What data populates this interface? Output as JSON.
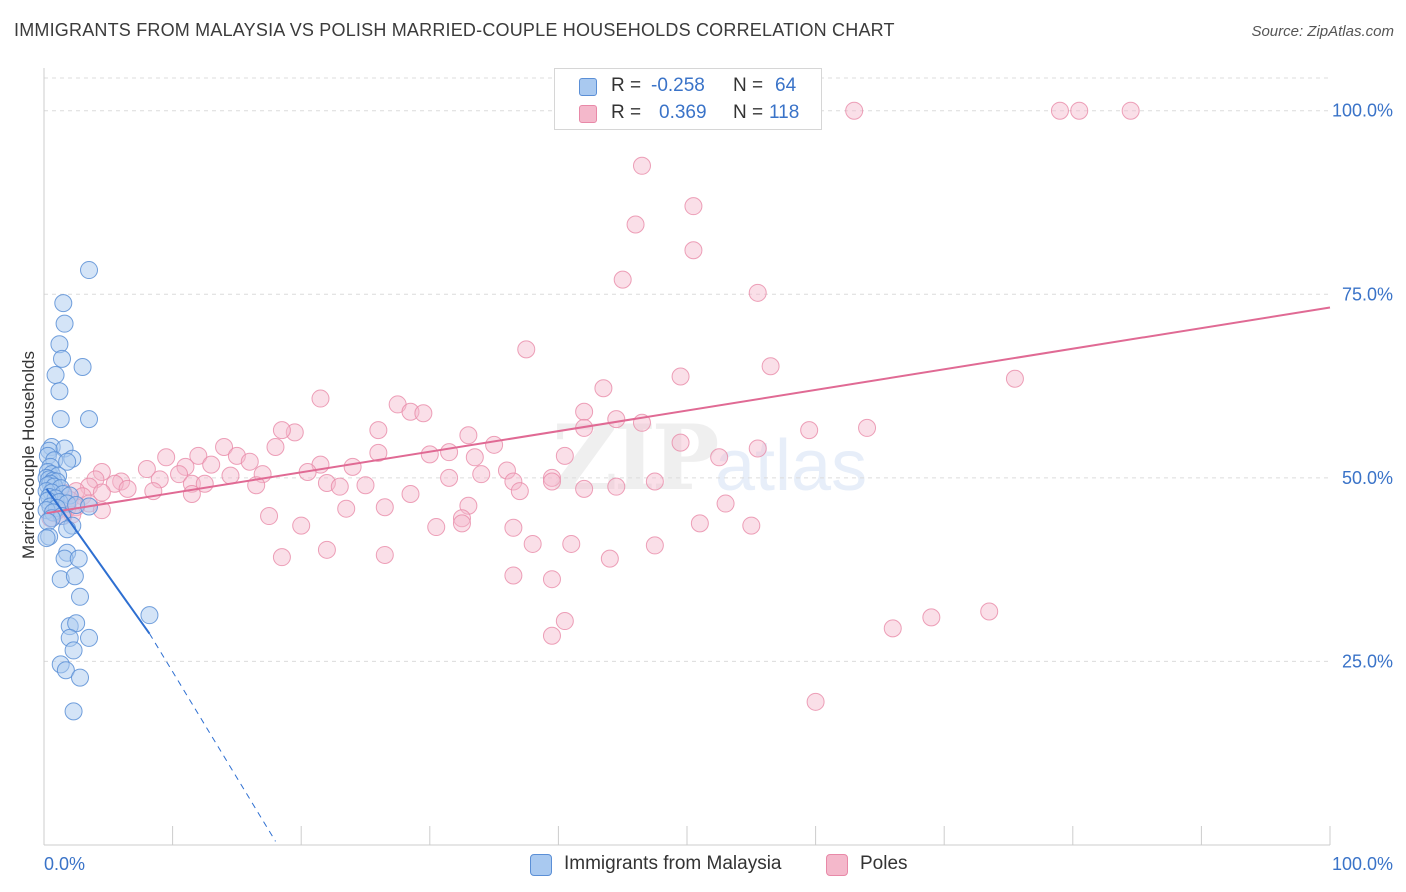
{
  "title": "IMMIGRANTS FROM MALAYSIA VS POLISH MARRIED-COUPLE HOUSEHOLDS CORRELATION CHART",
  "source": "Source: ZipAtlas.com",
  "watermark": {
    "zip": "ZIP",
    "atlas": "atlas"
  },
  "legend": {
    "rows": [
      {
        "r_label": "R =",
        "r_value": "-0.258",
        "n_label": "N =",
        "n_value": "64"
      },
      {
        "r_label": "R =",
        "r_value": "0.369",
        "n_label": "N =",
        "n_value": "118"
      }
    ]
  },
  "bottom_legend": {
    "series_1": "Immigrants from Malaysia",
    "series_2": "Poles"
  },
  "colors": {
    "blue_fill": "#a9c9f0",
    "blue_stroke": "#5b8fd6",
    "blue_line": "#2e6fd1",
    "pink_fill": "#f4b8cb",
    "pink_stroke": "#e889a8",
    "pink_line": "#e06a94",
    "tick_label": "#3a73c8",
    "grid": "#dcdcdc"
  },
  "chart_data": {
    "type": "scatter",
    "title": "IMMIGRANTS FROM MALAYSIA VS POLISH MARRIED-COUPLE HOUSEHOLDS CORRELATION CHART",
    "xlabel": "",
    "ylabel": "Married-couple Households",
    "xlim": [
      0,
      100
    ],
    "ylim": [
      0,
      105
    ],
    "x_tick_labels": [
      "0.0%",
      "100.0%"
    ],
    "y_ticks": [
      25,
      50,
      75,
      100
    ],
    "y_tick_labels": [
      "25.0%",
      "50.0%",
      "75.0%",
      "100.0%"
    ],
    "grid": "horizontal dashed",
    "legend_position": "top-center",
    "series": [
      {
        "name": "Immigrants from Malaysia",
        "color": "#a9c9f0",
        "regression": {
          "x": [
            0.2,
            8.2
          ],
          "y": [
            48.5,
            28.8
          ],
          "dashed_extension_to": [
            18,
            0.5
          ]
        },
        "points": [
          [
            3.5,
            78.3
          ],
          [
            1.5,
            73.8
          ],
          [
            1.6,
            71
          ],
          [
            1.2,
            68.2
          ],
          [
            1.4,
            66.2
          ],
          [
            3,
            65.1
          ],
          [
            0.9,
            64
          ],
          [
            1.2,
            61.8
          ],
          [
            1.3,
            58
          ],
          [
            3.5,
            58
          ],
          [
            0.6,
            54.2
          ],
          [
            0.4,
            53.7
          ],
          [
            1.6,
            54
          ],
          [
            0.3,
            53
          ],
          [
            0.8,
            52.4
          ],
          [
            2.2,
            52.6
          ],
          [
            1.8,
            52.2
          ],
          [
            0.5,
            51.5
          ],
          [
            0.3,
            50.8
          ],
          [
            0.6,
            50.5
          ],
          [
            1.1,
            50.3
          ],
          [
            0.2,
            50
          ],
          [
            0.4,
            49.8
          ],
          [
            0.7,
            49.6
          ],
          [
            1.0,
            49.5
          ],
          [
            0.5,
            49.2
          ],
          [
            0.3,
            49
          ],
          [
            0.8,
            48.8
          ],
          [
            1.3,
            48.6
          ],
          [
            0.2,
            48.2
          ],
          [
            0.6,
            48
          ],
          [
            1.5,
            47.8
          ],
          [
            2.0,
            47.6
          ],
          [
            0.4,
            47.4
          ],
          [
            0.9,
            47.2
          ],
          [
            0.3,
            46.9
          ],
          [
            1.2,
            46.7
          ],
          [
            1.8,
            46.5
          ],
          [
            2.5,
            46.3
          ],
          [
            0.5,
            46.1
          ],
          [
            1.0,
            45.9
          ],
          [
            0.2,
            45.6
          ],
          [
            0.7,
            45.3
          ],
          [
            3.5,
            46.1
          ],
          [
            1.4,
            44.8
          ],
          [
            0.6,
            44.5
          ],
          [
            0.3,
            44
          ],
          [
            2.2,
            43.5
          ],
          [
            1.8,
            43
          ],
          [
            0.4,
            42
          ],
          [
            0.2,
            41.8
          ],
          [
            1.8,
            39.8
          ],
          [
            1.6,
            39
          ],
          [
            2.7,
            39
          ],
          [
            1.3,
            36.2
          ],
          [
            2.4,
            36.6
          ],
          [
            2.8,
            33.8
          ],
          [
            2.0,
            29.8
          ],
          [
            2.5,
            30.2
          ],
          [
            3.5,
            28.2
          ],
          [
            2.0,
            28.2
          ],
          [
            2.3,
            26.5
          ],
          [
            1.3,
            24.6
          ],
          [
            1.7,
            23.8
          ],
          [
            2.8,
            22.8
          ],
          [
            8.2,
            31.3
          ],
          [
            2.3,
            18.2
          ]
        ]
      },
      {
        "name": "Poles",
        "color": "#f4b8cb",
        "regression": {
          "x": [
            0.2,
            100
          ],
          "y": [
            45.2,
            73.2
          ]
        },
        "points": [
          [
            47,
            100
          ],
          [
            63,
            100
          ],
          [
            79,
            100
          ],
          [
            80.5,
            100
          ],
          [
            84.5,
            100
          ],
          [
            46.5,
            92.5
          ],
          [
            50.5,
            87
          ],
          [
            46,
            84.5
          ],
          [
            50.5,
            81
          ],
          [
            45,
            77
          ],
          [
            55.5,
            75.2
          ],
          [
            37.5,
            67.5
          ],
          [
            49.5,
            63.8
          ],
          [
            56.5,
            65.2
          ],
          [
            75.5,
            63.5
          ],
          [
            43.5,
            62.2
          ],
          [
            21.5,
            60.8
          ],
          [
            27.5,
            60
          ],
          [
            28.5,
            59
          ],
          [
            29.5,
            58.8
          ],
          [
            42,
            59
          ],
          [
            44.5,
            58
          ],
          [
            46.5,
            57.5
          ],
          [
            19.5,
            56.2
          ],
          [
            18.5,
            56.5
          ],
          [
            26,
            56.5
          ],
          [
            33,
            55.8
          ],
          [
            42,
            56.8
          ],
          [
            59.5,
            56.5
          ],
          [
            64,
            56.8
          ],
          [
            35,
            54.5
          ],
          [
            49.5,
            54.8
          ],
          [
            14,
            54.2
          ],
          [
            18,
            54.2
          ],
          [
            31.5,
            53.5
          ],
          [
            30,
            53.2
          ],
          [
            26,
            53.4
          ],
          [
            33.5,
            52.8
          ],
          [
            40.5,
            53
          ],
          [
            15,
            53
          ],
          [
            12,
            53
          ],
          [
            9.5,
            52.8
          ],
          [
            16,
            52.2
          ],
          [
            11,
            51.5
          ],
          [
            13,
            51.8
          ],
          [
            21.5,
            51.8
          ],
          [
            24,
            51.5
          ],
          [
            8,
            51.2
          ],
          [
            4.5,
            50.8
          ],
          [
            10.5,
            50.5
          ],
          [
            17,
            50.5
          ],
          [
            20.5,
            50.8
          ],
          [
            14.5,
            50.3
          ],
          [
            31.5,
            50
          ],
          [
            36,
            51
          ],
          [
            39.5,
            50
          ],
          [
            9,
            49.8
          ],
          [
            11.5,
            49.2
          ],
          [
            6,
            49.5
          ],
          [
            4,
            49.8
          ],
          [
            5.5,
            49.2
          ],
          [
            12.5,
            49.2
          ],
          [
            16.5,
            49
          ],
          [
            22,
            49.3
          ],
          [
            25,
            49
          ],
          [
            3.5,
            48.8
          ],
          [
            6.5,
            48.5
          ],
          [
            8.5,
            48.2
          ],
          [
            4.5,
            48
          ],
          [
            2.5,
            48.2
          ],
          [
            1.5,
            48
          ],
          [
            3,
            47.5
          ],
          [
            2,
            47
          ],
          [
            1.2,
            46.8
          ],
          [
            3.5,
            46.5
          ],
          [
            2.5,
            46
          ],
          [
            1.8,
            45.8
          ],
          [
            1,
            45.5
          ],
          [
            4.5,
            45.6
          ],
          [
            0.8,
            45.2
          ],
          [
            2.2,
            45
          ],
          [
            1.5,
            44.8
          ],
          [
            0.5,
            44.5
          ],
          [
            39.5,
            49.5
          ],
          [
            42,
            48.5
          ],
          [
            34,
            50.5
          ],
          [
            36.5,
            49.5
          ],
          [
            37,
            48.2
          ],
          [
            44.5,
            48.8
          ],
          [
            52.5,
            52.8
          ],
          [
            55.5,
            54
          ],
          [
            28.5,
            47.8
          ],
          [
            23,
            48.8
          ],
          [
            26.5,
            46
          ],
          [
            33,
            46.2
          ],
          [
            47.5,
            49.5
          ],
          [
            17.5,
            44.8
          ],
          [
            23.5,
            45.8
          ],
          [
            20,
            43.5
          ],
          [
            32.5,
            44.5
          ],
          [
            38,
            41
          ],
          [
            36.5,
            36.7
          ],
          [
            39.5,
            36.2
          ],
          [
            41,
            41
          ],
          [
            18.5,
            39.2
          ],
          [
            22,
            40.2
          ],
          [
            26.5,
            39.5
          ],
          [
            30.5,
            43.3
          ],
          [
            32.5,
            43.8
          ],
          [
            36.5,
            43.2
          ],
          [
            44,
            39
          ],
          [
            47.5,
            40.8
          ],
          [
            51,
            43.8
          ],
          [
            55,
            43.5
          ],
          [
            53,
            46.5
          ],
          [
            40.5,
            30.5
          ],
          [
            39.5,
            28.5
          ],
          [
            66,
            29.5
          ],
          [
            69,
            31
          ],
          [
            73.5,
            31.8
          ],
          [
            60,
            19.5
          ],
          [
            11.5,
            47.8
          ]
        ]
      }
    ]
  }
}
